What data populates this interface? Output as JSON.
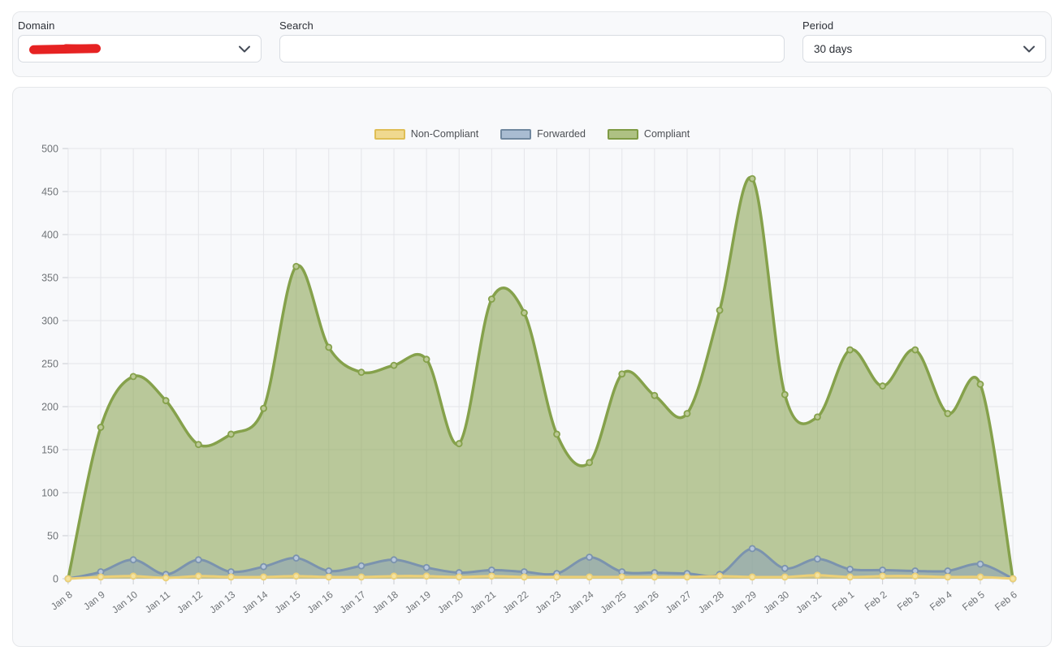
{
  "filters": {
    "domain": {
      "label": "Domain",
      "value_redacted": true
    },
    "search": {
      "label": "Search",
      "value": "",
      "placeholder": ""
    },
    "period": {
      "label": "Period",
      "value": "30 days"
    }
  },
  "colors": {
    "redaction_red": "#e62222",
    "card_background": "#f8f9fb",
    "card_border": "#e5e7ea",
    "gridline": "#e4e5e9",
    "tick": "#c9ccd1",
    "axis_text": "#6f7377"
  },
  "chart_data": {
    "type": "area",
    "title": "",
    "xlabel": "",
    "ylabel": "",
    "grid": true,
    "legend_position": "top-center",
    "ylim": [
      0,
      500
    ],
    "y_ticks": [
      0,
      50,
      100,
      150,
      200,
      250,
      300,
      350,
      400,
      450,
      500
    ],
    "x": [
      "Jan 8",
      "Jan 9",
      "Jan 10",
      "Jan 11",
      "Jan 12",
      "Jan 13",
      "Jan 14",
      "Jan 15",
      "Jan 16",
      "Jan 17",
      "Jan 18",
      "Jan 19",
      "Jan 20",
      "Jan 21",
      "Jan 22",
      "Jan 23",
      "Jan 24",
      "Jan 25",
      "Jan 26",
      "Jan 27",
      "Jan 28",
      "Jan 29",
      "Jan 30",
      "Jan 31",
      "Feb 1",
      "Feb 2",
      "Feb 3",
      "Feb 4",
      "Feb 5",
      "Feb 6"
    ],
    "series": [
      {
        "name": "Compliant",
        "line_color": "#85a14b",
        "fill_color": "rgba(133,161,75,0.55)",
        "marker_fill": "#bbc995",
        "values": [
          0,
          176,
          235,
          207,
          156,
          168,
          198,
          363,
          269,
          240,
          248,
          255,
          157,
          325,
          309,
          168,
          135,
          238,
          213,
          192,
          312,
          465,
          214,
          188,
          266,
          224,
          266,
          192,
          226,
          0
        ]
      },
      {
        "name": "Forwarded",
        "line_color": "#7b93ae",
        "fill_color": "rgba(139,160,186,0.55)",
        "marker_fill": "#b7c7db",
        "values": [
          0,
          8,
          22,
          5,
          22,
          8,
          14,
          24,
          9,
          15,
          22,
          13,
          7,
          10,
          8,
          6,
          25,
          8,
          7,
          6,
          5,
          35,
          12,
          23,
          11,
          10,
          9,
          9,
          17,
          0
        ]
      },
      {
        "name": "Non-Compliant",
        "line_color": "#ecd077",
        "fill_color": "rgba(236,208,119,0.5)",
        "marker_fill": "#f4e3a1",
        "values": [
          0,
          2,
          3,
          1,
          3,
          2,
          2,
          3,
          2,
          2,
          3,
          3,
          2,
          3,
          2,
          2,
          2,
          2,
          2,
          2,
          3,
          2,
          2,
          4,
          2,
          3,
          3,
          2,
          2,
          0
        ]
      }
    ],
    "legend": [
      {
        "label": "Non-Compliant",
        "swatch_fill": "#f0d98f",
        "swatch_border": "#dfbe55"
      },
      {
        "label": "Forwarded",
        "swatch_fill": "#a9bcd2",
        "swatch_border": "#7088a0"
      },
      {
        "label": "Compliant",
        "swatch_fill": "#aec183",
        "swatch_border": "#7f9b45"
      }
    ]
  }
}
